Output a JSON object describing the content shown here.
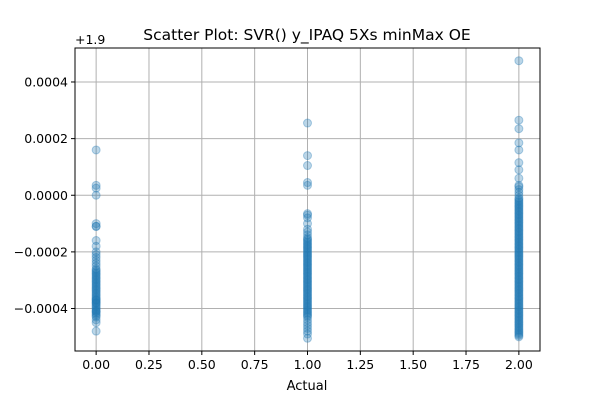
{
  "chart_data": {
    "type": "scatter",
    "title": "Scatter Plot: SVR() y_IPAQ 5Xs minMax OE",
    "xlabel": "Actual",
    "ylabel": "",
    "y_offset_label": "+1.9",
    "y_offset": 1.9,
    "xlim": [
      -0.1,
      2.1
    ],
    "ylim": [
      -0.00055,
      0.00052
    ],
    "x_ticks": [
      0.0,
      0.25,
      0.5,
      0.75,
      1.0,
      1.25,
      1.5,
      1.75,
      2.0
    ],
    "x_tick_labels": [
      "0.00",
      "0.25",
      "0.50",
      "0.75",
      "1.00",
      "1.25",
      "1.50",
      "1.75",
      "2.00"
    ],
    "y_ticks": [
      -0.0004,
      -0.0002,
      0.0,
      0.0002,
      0.0004
    ],
    "y_tick_labels": [
      "−0.0004",
      "−0.0002",
      "0.0000",
      "0.0002",
      "0.0004"
    ],
    "grid": true,
    "marker_color": "#1f77b4",
    "marker_alpha": 0.3,
    "series": [
      {
        "x": [
          0,
          0,
          0,
          0,
          0,
          0,
          0,
          0,
          0,
          0,
          0,
          0,
          0,
          0,
          0,
          0,
          0,
          0,
          0,
          0,
          0,
          0,
          0,
          0,
          0,
          0,
          0,
          0,
          0,
          0,
          0,
          0,
          0,
          0,
          0,
          0,
          0,
          0,
          0,
          0,
          0,
          0,
          0,
          0,
          0,
          0,
          0,
          0,
          0,
          0,
          0,
          0,
          0,
          0,
          0,
          0,
          1,
          1,
          1,
          1,
          1,
          1,
          1,
          1,
          1,
          1,
          1,
          1,
          1,
          1,
          1,
          1,
          1,
          1,
          1,
          1,
          1,
          1,
          1,
          1,
          1,
          1,
          1,
          1,
          1,
          1,
          1,
          1,
          1,
          1,
          1,
          1,
          1,
          1,
          1,
          1,
          1,
          1,
          1,
          1,
          1,
          1,
          1,
          1,
          1,
          1,
          1,
          1,
          1,
          1,
          1,
          1,
          1,
          1,
          1,
          1,
          1,
          1,
          1,
          1,
          1,
          1,
          1,
          1,
          1,
          1,
          1,
          1,
          1,
          1,
          1,
          1,
          2,
          2,
          2,
          2,
          2,
          2,
          2,
          2,
          2,
          2,
          2,
          2,
          2,
          2,
          2,
          2,
          2,
          2,
          2,
          2,
          2,
          2,
          2,
          2,
          2,
          2,
          2,
          2,
          2,
          2,
          2,
          2,
          2,
          2,
          2,
          2,
          2,
          2,
          2,
          2,
          2,
          2,
          2,
          2,
          2,
          2,
          2,
          2,
          2,
          2,
          2,
          2,
          2,
          2,
          2,
          2,
          2,
          2,
          2,
          2,
          2,
          2,
          2,
          2,
          2,
          2,
          2,
          2,
          2,
          2,
          2,
          2,
          2,
          2,
          2,
          2,
          2,
          2,
          2,
          2,
          2,
          2,
          2,
          2,
          2,
          2,
          2,
          2,
          2,
          2,
          2,
          2,
          2,
          2,
          2,
          2,
          2,
          2,
          2,
          2,
          2,
          2,
          2,
          2,
          2,
          2,
          2,
          2,
          2,
          2,
          2,
          2
        ],
        "y": [
          0.00016,
          3.5e-05,
          2.5e-05,
          0.0,
          -0.0001,
          -0.00011,
          -0.00011,
          -0.00016,
          -0.00018,
          -0.0002,
          -0.00022,
          -0.00024,
          -0.00025,
          -0.00026,
          -0.00027,
          -0.00028,
          -0.00029,
          -0.0003,
          -0.00031,
          -0.00032,
          -0.00033,
          -0.00034,
          -0.00035,
          -0.00036,
          -0.00037,
          -0.00038,
          -0.00039,
          -0.0004,
          -0.00041,
          -0.00042,
          -0.00043,
          -0.00044,
          -0.00045,
          -0.00048,
          -0.000265,
          -0.000275,
          -0.000285,
          -0.000295,
          -0.000305,
          -0.000315,
          -0.000325,
          -0.000335,
          -0.000345,
          -0.000355,
          -0.000365,
          -0.000375,
          -0.000385,
          -0.000395,
          -0.000405,
          -0.000415,
          -0.000425,
          -0.00021,
          -0.00023,
          -0.00037,
          -0.00038,
          -0.00041,
          0.000255,
          0.00014,
          0.000105,
          4.5e-05,
          3.5e-05,
          -6.5e-05,
          -7e-05,
          -8e-05,
          -0.0001,
          -0.00012,
          -0.00013,
          -0.00014,
          -0.00015,
          -0.00016,
          -0.00017,
          -0.00018,
          -0.00019,
          -0.0002,
          -0.00021,
          -0.00022,
          -0.00023,
          -0.00024,
          -0.00025,
          -0.00026,
          -0.00027,
          -0.00028,
          -0.00029,
          -0.0003,
          -0.00031,
          -0.00032,
          -0.00033,
          -0.00034,
          -0.00035,
          -0.00036,
          -0.00037,
          -0.00038,
          -0.00039,
          -0.0004,
          -0.00041,
          -0.00042,
          -0.00043,
          -0.00044,
          -0.00045,
          -0.00046,
          -0.00047,
          -0.00048,
          -0.00049,
          -0.000505,
          -0.000155,
          -0.000165,
          -0.000175,
          -0.000185,
          -0.000195,
          -0.000205,
          -0.000215,
          -0.000225,
          -0.000235,
          -0.000245,
          -0.000255,
          -0.000265,
          -0.000275,
          -0.000285,
          -0.000295,
          -0.000305,
          -0.000315,
          -0.000325,
          -0.000335,
          -0.000345,
          -0.000355,
          -0.000365,
          -0.000375,
          -0.000385,
          -0.000395,
          -0.000405,
          -0.000415,
          -0.000425,
          0.000475,
          0.000265,
          0.000235,
          0.000185,
          0.00016,
          0.000115,
          9e-05,
          6e-05,
          3.5e-05,
          3e-05,
          2e-05,
          1e-05,
          0.0,
          -1e-05,
          -2e-05,
          -3e-05,
          -4e-05,
          -5e-05,
          -6e-05,
          -7e-05,
          -8e-05,
          -9e-05,
          -0.0001,
          -0.00011,
          -0.00012,
          -0.00013,
          -0.00014,
          -0.00015,
          -0.00016,
          -0.00017,
          -0.00018,
          -0.00019,
          -0.0002,
          -0.00021,
          -0.00022,
          -0.00023,
          -0.00024,
          -0.00025,
          -0.00026,
          -0.00027,
          -0.00028,
          -0.00029,
          -0.0003,
          -0.00031,
          -0.00032,
          -0.00033,
          -0.00034,
          -0.00035,
          -0.00036,
          -0.00037,
          -0.00038,
          -0.00039,
          -0.0004,
          -0.00041,
          -0.00042,
          -0.00043,
          -0.00044,
          -0.00045,
          -0.00046,
          -0.00047,
          -0.00048,
          -0.00049,
          -0.0005,
          -1.5e-05,
          -2.5e-05,
          -3.5e-05,
          -4.5e-05,
          -5.5e-05,
          -6.5e-05,
          -7.5e-05,
          -8.5e-05,
          -9.5e-05,
          -0.000105,
          -0.000115,
          -0.000125,
          -0.000135,
          -0.000145,
          -0.000155,
          -0.000165,
          -0.000175,
          -0.000185,
          -0.000195,
          -0.000205,
          -0.000215,
          -0.000225,
          -0.000235,
          -0.000245,
          -0.000255,
          -0.000265,
          -0.000275,
          -0.000285,
          -0.000295,
          -0.000305,
          -0.000315,
          -0.000325,
          -0.000335,
          -0.000345,
          -0.000355,
          -0.000365,
          -0.000375,
          -0.000385,
          -0.000395,
          -0.000405,
          -0.000415,
          -0.000425,
          -0.000435,
          -0.000445,
          -0.000455,
          -0.000465,
          -0.000475,
          -0.000485,
          -0.000495
        ]
      }
    ]
  }
}
